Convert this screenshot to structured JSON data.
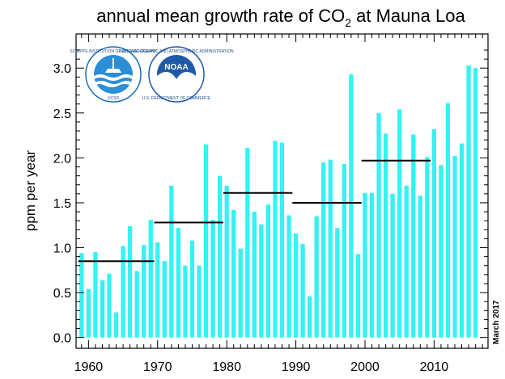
{
  "chart_data": {
    "type": "bar",
    "title": "annual mean growth rate of CO",
    "title_subscript": "2",
    "title_suffix": " at Mauna Loa",
    "xlabel": "",
    "ylabel": "ppm per year",
    "xlim": [
      1958.2,
      2017.8
    ],
    "ylim": [
      -0.12,
      3.38
    ],
    "xticks": [
      1960,
      1970,
      1980,
      1990,
      2000,
      2010
    ],
    "yticks": [
      "0.0",
      "0.5",
      "1.0",
      "1.5",
      "2.0",
      "2.5",
      "3.0"
    ],
    "grid": false,
    "bar_color": "#33f3f3",
    "mean_line_color": "#000000",
    "x": [
      1959,
      1960,
      1961,
      1962,
      1963,
      1964,
      1965,
      1966,
      1967,
      1968,
      1969,
      1970,
      1971,
      1972,
      1973,
      1974,
      1975,
      1976,
      1977,
      1978,
      1979,
      1980,
      1981,
      1982,
      1983,
      1984,
      1985,
      1986,
      1987,
      1988,
      1989,
      1990,
      1991,
      1992,
      1993,
      1994,
      1995,
      1996,
      1997,
      1998,
      1999,
      2000,
      2001,
      2002,
      2003,
      2004,
      2005,
      2006,
      2007,
      2008,
      2009,
      2010,
      2011,
      2012,
      2013,
      2014,
      2015,
      2016
    ],
    "values": [
      0.94,
      0.54,
      0.95,
      0.64,
      0.71,
      0.28,
      1.02,
      1.24,
      0.74,
      1.03,
      1.31,
      1.06,
      0.85,
      1.69,
      1.22,
      0.8,
      1.08,
      0.8,
      2.15,
      1.31,
      1.8,
      1.69,
      1.42,
      0.99,
      2.11,
      1.4,
      1.26,
      1.48,
      2.19,
      2.17,
      1.36,
      1.16,
      1.04,
      0.46,
      1.35,
      1.95,
      1.98,
      1.22,
      1.93,
      2.93,
      0.93,
      1.61,
      1.61,
      2.5,
      2.27,
      1.6,
      2.54,
      1.69,
      2.26,
      1.58,
      2.01,
      2.32,
      1.92,
      2.61,
      2.02,
      2.16,
      3.03,
      3.0
    ],
    "decadal_means": [
      {
        "start": 1959,
        "end": 1969,
        "value": 0.85
      },
      {
        "start": 1970,
        "end": 1979,
        "value": 1.28
      },
      {
        "start": 1980,
        "end": 1989,
        "value": 1.61
      },
      {
        "start": 1990,
        "end": 1999,
        "value": 1.5
      },
      {
        "start": 2000,
        "end": 2009,
        "value": 1.97
      }
    ],
    "annotation": "March 2017"
  },
  "logos": {
    "scripps": {
      "name": "scripps-logo",
      "ring_text": "SCRIPPS INSTITUTION OF OCEANOGRAPHY",
      "bottom_text": "UCSD",
      "color": "#1a6fb8"
    },
    "noaa": {
      "name": "noaa-logo",
      "center_text": "NOAA",
      "ring_text": "NATIONAL OCEANIC AND ATMOSPHERIC ADMINISTRATION",
      "bottom_text": "U.S. DEPARTMENT OF COMMERCE",
      "color": "#1f5aa6"
    }
  }
}
